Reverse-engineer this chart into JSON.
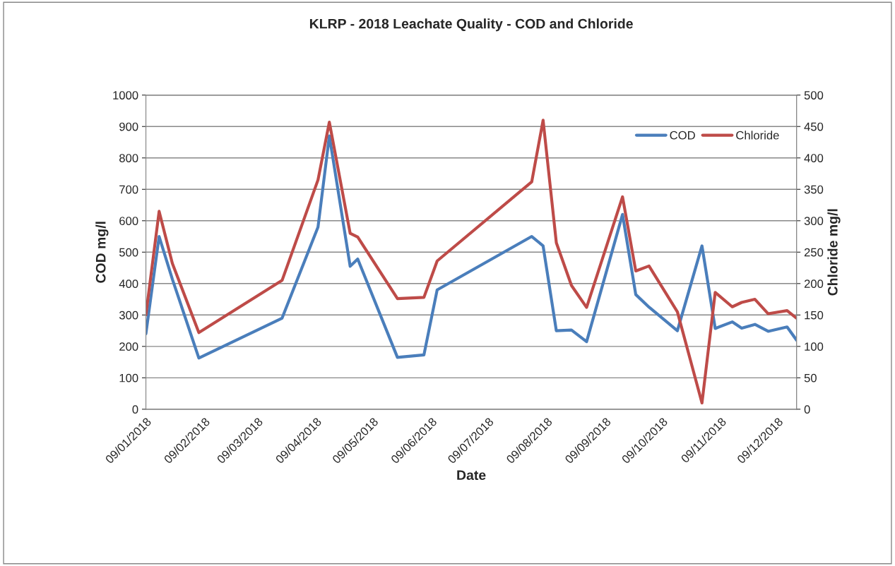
{
  "chart_data": {
    "type": "line",
    "title": "KLRP - 2018 Leachate Quality - COD and Chloride",
    "xlabel": "Date",
    "ylabel": "COD mg/l",
    "y2label": "Chloride mg/l",
    "x": [
      "2018-01-09",
      "2018-01-16",
      "2018-01-23",
      "2018-02-06",
      "2018-03-22",
      "2018-04-10",
      "2018-04-16",
      "2018-04-27",
      "2018-05-01",
      "2018-05-22",
      "2018-06-05",
      "2018-06-12",
      "2018-08-01",
      "2018-08-07",
      "2018-08-14",
      "2018-08-22",
      "2018-08-30",
      "2018-09-18",
      "2018-09-25",
      "2018-10-02",
      "2018-10-17",
      "2018-10-30",
      "2018-11-06",
      "2018-11-15",
      "2018-11-20",
      "2018-11-27",
      "2018-12-04",
      "2018-12-14",
      "2018-12-19"
    ],
    "series": [
      {
        "name": "COD",
        "color": "#4a7ebb",
        "values": [
          240,
          550,
          414,
          163,
          290,
          580,
          870,
          455,
          478,
          165,
          173,
          380,
          550,
          520,
          250,
          252,
          215,
          620,
          365,
          325,
          250,
          520,
          257,
          278,
          258,
          270,
          248,
          262,
          220
        ]
      },
      {
        "name": "Chloride",
        "color": "#be4b48",
        "axis": "y2",
        "values": [
          150,
          315,
          232,
          122,
          205,
          365,
          457,
          280,
          274,
          176,
          178,
          236,
          362,
          460,
          265,
          197,
          162,
          338,
          220,
          228,
          155,
          10,
          186,
          163,
          170,
          175,
          152,
          157,
          145
        ]
      }
    ],
    "xlim": [
      "2018-01-09",
      "2018-12-19"
    ],
    "xticks": [
      {
        "value": "2018-01-09",
        "label": "09/01/2018"
      },
      {
        "value": "2018-02-09",
        "label": "09/02/2018"
      },
      {
        "value": "2018-03-09",
        "label": "09/03/2018"
      },
      {
        "value": "2018-04-09",
        "label": "09/04/2018"
      },
      {
        "value": "2018-05-09",
        "label": "09/05/2018"
      },
      {
        "value": "2018-06-09",
        "label": "09/06/2018"
      },
      {
        "value": "2018-07-09",
        "label": "09/07/2018"
      },
      {
        "value": "2018-08-09",
        "label": "09/08/2018"
      },
      {
        "value": "2018-09-09",
        "label": "09/09/2018"
      },
      {
        "value": "2018-10-09",
        "label": "09/10/2018"
      },
      {
        "value": "2018-11-09",
        "label": "09/11/2018"
      },
      {
        "value": "2018-12-09",
        "label": "09/12/2018"
      }
    ],
    "ylim": [
      0,
      1000
    ],
    "yticks": [
      0,
      100,
      200,
      300,
      400,
      500,
      600,
      700,
      800,
      900,
      1000
    ],
    "y2lim": [
      0,
      500
    ],
    "y2ticks": [
      0,
      50,
      100,
      150,
      200,
      250,
      300,
      350,
      400,
      450,
      500
    ],
    "grid": "y",
    "legend": "top right",
    "marker": "none",
    "line_style": "solid"
  }
}
